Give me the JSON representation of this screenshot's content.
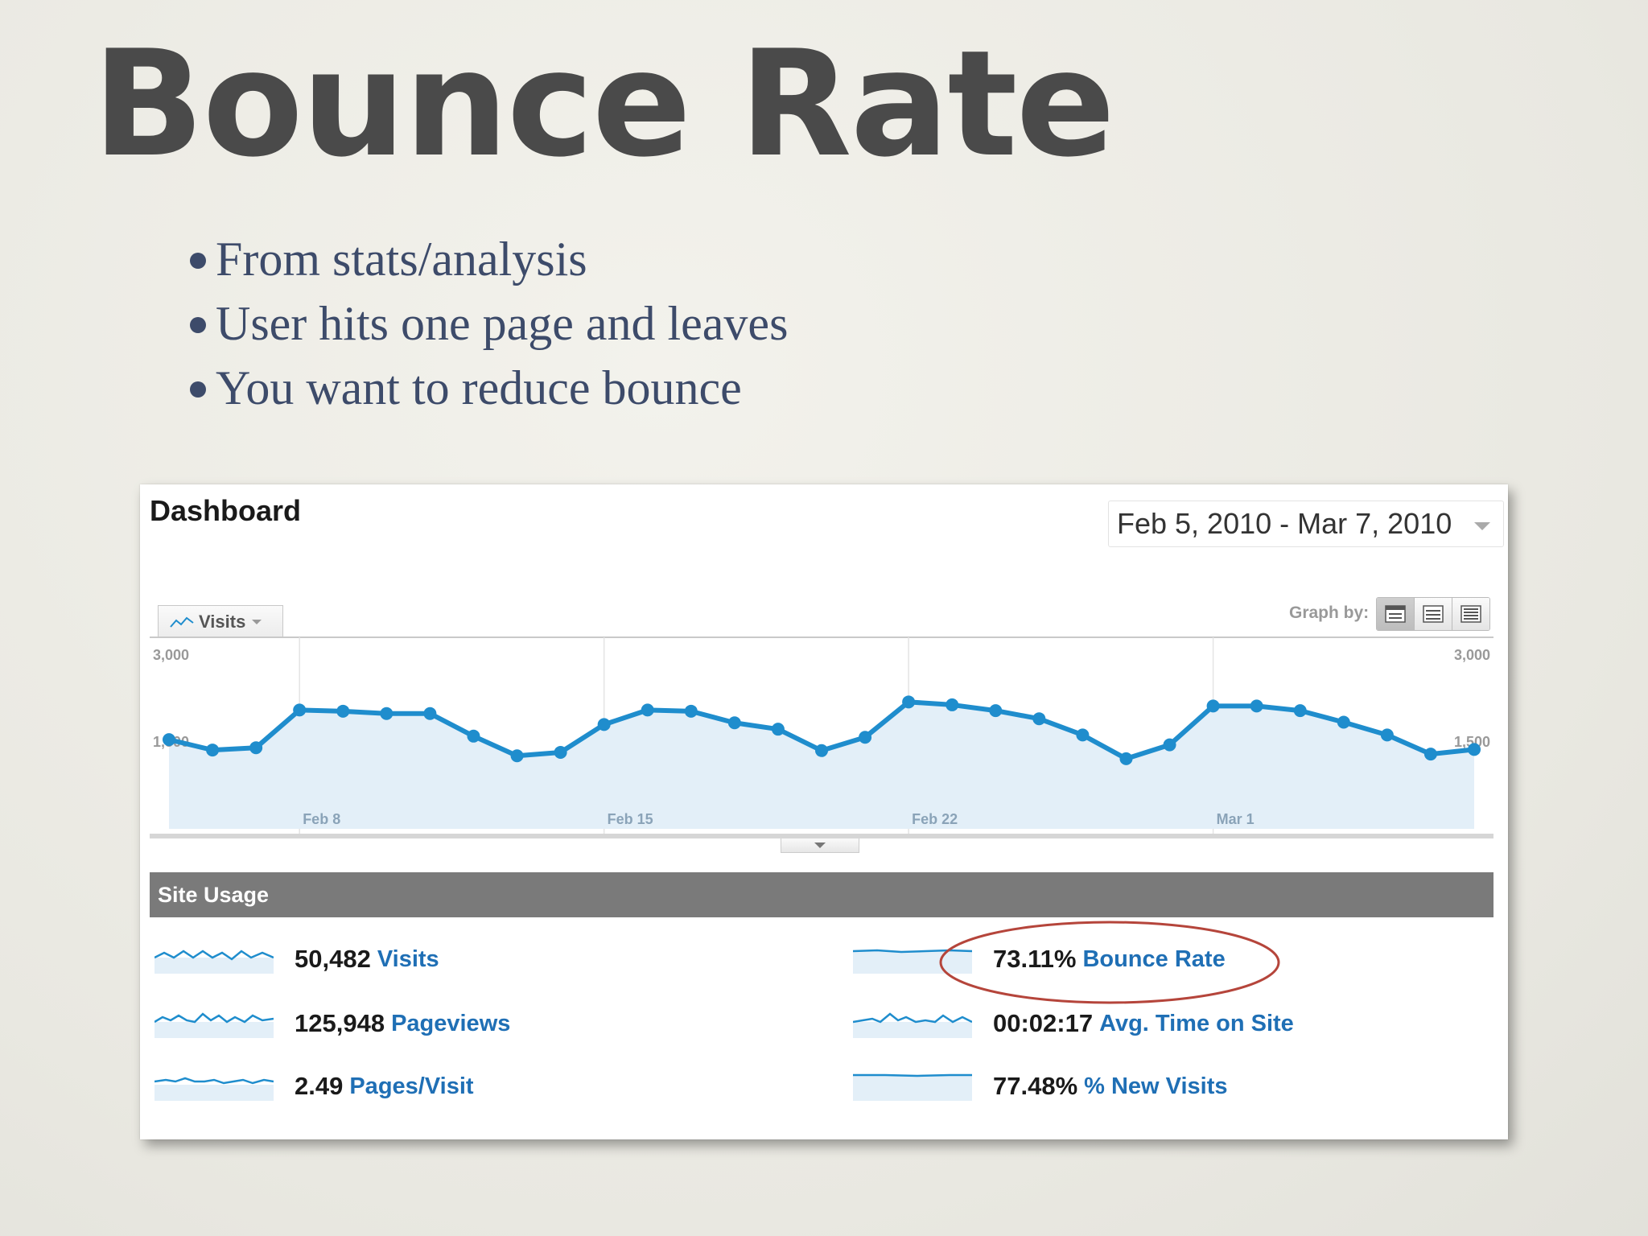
{
  "slide": {
    "title": "Bounce Rate",
    "bullets": [
      "From stats/analysis",
      "User hits one page and leaves",
      "You want to reduce bounce"
    ]
  },
  "dashboard": {
    "title": "Dashboard",
    "date_range": "Feb 5, 2010 - Mar 7, 2010",
    "metric_selector": "Visits",
    "graph_by_label": "Graph by:",
    "graph_by_options": [
      "day-icon",
      "week-icon",
      "month-icon"
    ],
    "site_usage_title": "Site Usage",
    "highlight_color": "#b5453b",
    "accent_color": "#1f8dcd",
    "stats": [
      {
        "value": "50,482",
        "label": "Visits"
      },
      {
        "value": "125,948",
        "label": "Pageviews"
      },
      {
        "value": "2.49",
        "label": "Pages/Visit"
      },
      {
        "value": "73.11%",
        "label": "Bounce Rate"
      },
      {
        "value": "00:02:17",
        "label": "Avg. Time on Site"
      },
      {
        "value": "77.48%",
        "label": "% New Visits"
      }
    ]
  },
  "chart_data": {
    "type": "area",
    "y_tick_left": [
      "3,000",
      "1,500"
    ],
    "y_tick_right": [
      "3,000",
      "1,500"
    ],
    "ylim": [
      0,
      3000
    ],
    "x_tick_labels": [
      "Feb 8",
      "Feb 15",
      "Feb 22",
      "Mar 1"
    ],
    "x_tick_indices": [
      3,
      10,
      17,
      24
    ],
    "grid": true,
    "series": [
      {
        "values": [
          1540,
          1360,
          1400,
          2050,
          2030,
          1990,
          1990,
          1600,
          1260,
          1320,
          1800,
          2050,
          2030,
          1830,
          1720,
          1350,
          1580,
          2190,
          2140,
          2040,
          1900,
          1620,
          1210,
          1450,
          2120,
          2120,
          2040,
          1840,
          1620,
          1290,
          1370
        ]
      }
    ]
  }
}
